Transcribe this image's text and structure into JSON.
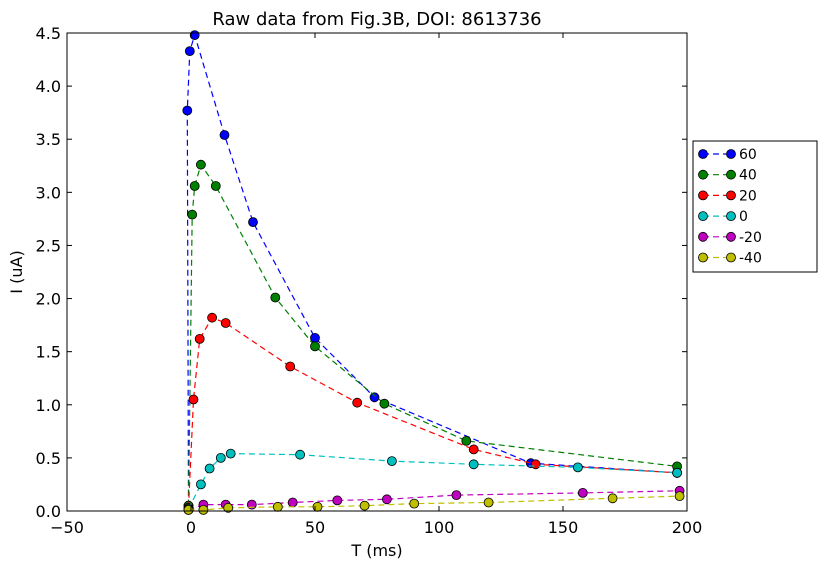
{
  "chart_data": {
    "type": "line",
    "title": "Raw data from Fig.3B, DOI: 8613736",
    "xlabel": "T (ms)",
    "ylabel": "I (uA)",
    "xlim": [
      -50,
      200
    ],
    "ylim": [
      0,
      4.5
    ],
    "xticks": [
      -50,
      0,
      50,
      100,
      150,
      200
    ],
    "xtick_labels": [
      "−50",
      "0",
      "50",
      "100",
      "150",
      "200"
    ],
    "yticks": [
      0,
      0.5,
      1,
      1.5,
      2,
      2.5,
      3,
      3.5,
      4,
      4.5
    ],
    "ytick_labels": [
      "0.0",
      "0.5",
      "1.0",
      "1.5",
      "2.0",
      "2.5",
      "3.0",
      "3.5",
      "4.0",
      "4.5"
    ],
    "grid": false,
    "legend_position": "outside-right",
    "series": [
      {
        "name": "60",
        "color": "#0000ff",
        "points": [
          [
            -1,
            0.05
          ],
          [
            -1.5,
            3.77
          ],
          [
            -0.5,
            4.33
          ],
          [
            1.5,
            4.48
          ],
          [
            13.5,
            3.54
          ],
          [
            25,
            2.72
          ],
          [
            50,
            1.63
          ],
          [
            74,
            1.07
          ],
          [
            137,
            0.45
          ],
          [
            196,
            0.36
          ]
        ]
      },
      {
        "name": "40",
        "color": "#008000",
        "points": [
          [
            -1,
            0.05
          ],
          [
            0.5,
            2.79
          ],
          [
            1.5,
            3.06
          ],
          [
            4,
            3.26
          ],
          [
            10,
            3.06
          ],
          [
            34,
            2.01
          ],
          [
            50,
            1.55
          ],
          [
            78,
            1.01
          ],
          [
            111,
            0.66
          ],
          [
            196,
            0.42
          ]
        ]
      },
      {
        "name": "20",
        "color": "#ff0000",
        "points": [
          [
            -1,
            0.03
          ],
          [
            1,
            1.05
          ],
          [
            3.5,
            1.62
          ],
          [
            8.5,
            1.82
          ],
          [
            14,
            1.77
          ],
          [
            40,
            1.36
          ],
          [
            67,
            1.02
          ],
          [
            114,
            0.58
          ],
          [
            139,
            0.44
          ],
          [
            196,
            0.36
          ]
        ]
      },
      {
        "name": "0",
        "color": "#00bfbf",
        "points": [
          [
            -1,
            0.02
          ],
          [
            4,
            0.25
          ],
          [
            7.5,
            0.4
          ],
          [
            12,
            0.5
          ],
          [
            16,
            0.54
          ],
          [
            44,
            0.53
          ],
          [
            81,
            0.47
          ],
          [
            114,
            0.44
          ],
          [
            156,
            0.41
          ],
          [
            196,
            0.36
          ]
        ]
      },
      {
        "name": "-20",
        "color": "#bf00bf",
        "points": [
          [
            -1,
            0.01
          ],
          [
            5,
            0.06
          ],
          [
            14,
            0.06
          ],
          [
            24.5,
            0.06
          ],
          [
            41,
            0.08
          ],
          [
            59,
            0.1
          ],
          [
            79,
            0.11
          ],
          [
            107,
            0.15
          ],
          [
            158,
            0.17
          ],
          [
            197,
            0.19
          ]
        ]
      },
      {
        "name": "-40",
        "color": "#bfbf00",
        "points": [
          [
            -1,
            0.01
          ],
          [
            5,
            0.01
          ],
          [
            15,
            0.03
          ],
          [
            35,
            0.04
          ],
          [
            51,
            0.04
          ],
          [
            70,
            0.05
          ],
          [
            90,
            0.07
          ],
          [
            120,
            0.08
          ],
          [
            170,
            0.12
          ],
          [
            197,
            0.14
          ]
        ]
      }
    ]
  }
}
